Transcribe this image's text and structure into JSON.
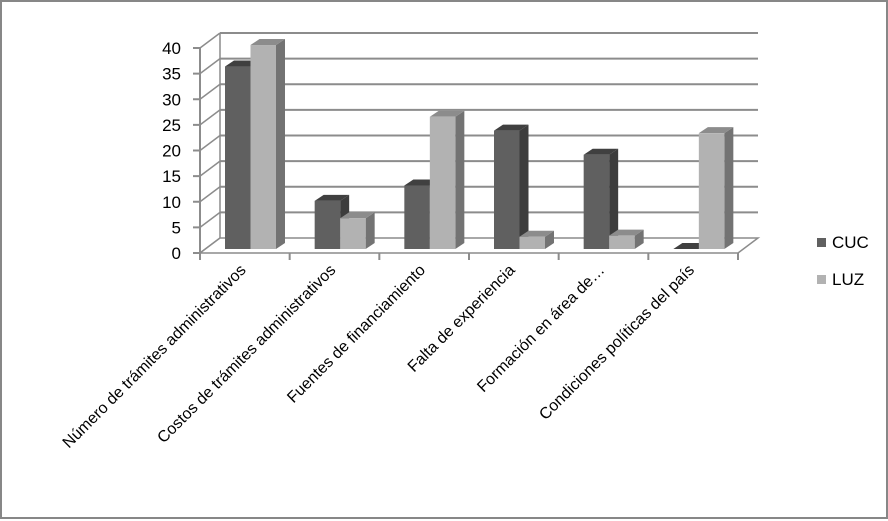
{
  "chart_data": {
    "type": "bar",
    "style": "3d-clustered-column",
    "title": "",
    "xlabel": "",
    "ylabel": "",
    "ylim": [
      0,
      40
    ],
    "yticks": [
      0,
      5,
      10,
      15,
      20,
      25,
      30,
      35,
      40
    ],
    "grid": true,
    "legend_position": "right",
    "categories": [
      "Número de trámites administrativos",
      "Costos de trámites administrativos",
      "Fuentes de financiamiento",
      "Falta de experiencia",
      "Formación en área de…",
      "Condiciones políticas del país"
    ],
    "series": [
      {
        "name": "CUC",
        "color": "#606060",
        "values": [
          35.6,
          9.4,
          12.4,
          23.1,
          18.4,
          0
        ]
      },
      {
        "name": "LUZ",
        "color": "#b2b2b2",
        "values": [
          39.8,
          6.0,
          25.8,
          2.4,
          2.6,
          22.6
        ]
      }
    ]
  },
  "legend": {
    "items": [
      {
        "label": "CUC",
        "color": "#606060"
      },
      {
        "label": "LUZ",
        "color": "#b2b2b2"
      }
    ]
  }
}
